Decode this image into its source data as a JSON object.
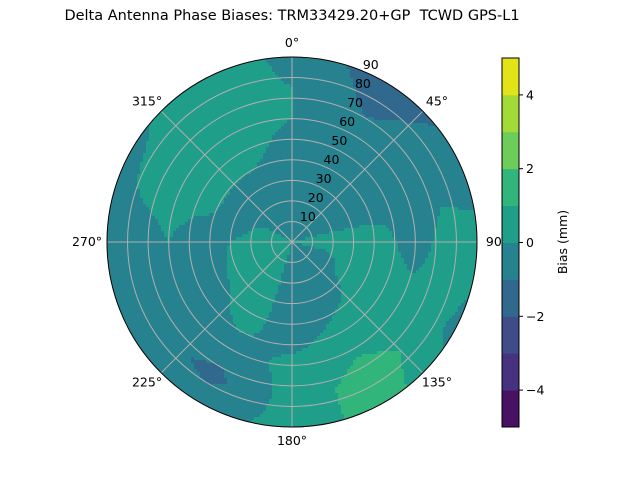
{
  "chart_data": {
    "type": "heatmap",
    "subtype": "polar-filled-contour",
    "title": "Delta Antenna Phase Biases: TRM33429.20+GP  TCWD GPS-L1",
    "angular_direction": "clockwise",
    "zero_location": "top",
    "angular_ticks": [
      "0°",
      "45°",
      "90°",
      "135°",
      "180°",
      "225°",
      "270°",
      "315°"
    ],
    "angular_tick_values": [
      0,
      45,
      90,
      135,
      180,
      225,
      270,
      315
    ],
    "radial_ticks": [
      "10",
      "20",
      "30",
      "40",
      "50",
      "60",
      "70",
      "80",
      "90"
    ],
    "radial_tick_values": [
      10,
      20,
      30,
      40,
      50,
      60,
      70,
      80,
      90
    ],
    "rlim": [
      0,
      90
    ],
    "grid": true,
    "colorbar": {
      "label": "Bias (mm)",
      "colormap": "viridis",
      "levels": [
        -5,
        -4,
        -3,
        -2,
        -1,
        0,
        1,
        2,
        3,
        4,
        5
      ],
      "ticks": [
        -4,
        -2,
        0,
        2,
        4
      ],
      "tick_labels": [
        "−4",
        "−2",
        "0",
        "2",
        "4"
      ],
      "band_colors": [
        "#471164",
        "#46327e",
        "#3e4c8a",
        "#31688e",
        "#26828e",
        "#1f9e89",
        "#31b57b",
        "#6ccd5a",
        "#a2da37",
        "#e2e418"
      ]
    },
    "azimuth_deg": [
      0,
      30,
      60,
      90,
      120,
      150,
      180,
      210,
      240,
      270,
      300,
      330
    ],
    "zenith_deg": [
      0,
      15,
      30,
      45,
      60,
      75,
      90
    ],
    "bias_mm": [
      [
        0,
        -0.5,
        -0.5,
        -0.4,
        0.0,
        0.0,
        -0.3
      ],
      [
        0,
        -0.5,
        -0.5,
        -0.5,
        -0.5,
        -1.2,
        -1.5
      ],
      [
        0,
        -0.4,
        -0.5,
        -0.5,
        -0.5,
        -0.5,
        -0.8
      ],
      [
        0,
        0.4,
        0.4,
        0.3,
        -0.5,
        0.4,
        0.4
      ],
      [
        0,
        -0.5,
        0.3,
        0.5,
        0.5,
        0.5,
        -0.3
      ],
      [
        0,
        -0.5,
        -0.5,
        0.2,
        0.8,
        1.5,
        1.5
      ],
      [
        0,
        -0.5,
        -0.5,
        -0.5,
        0.3,
        0.4,
        0.4
      ],
      [
        0,
        0.4,
        0.4,
        0.3,
        -0.5,
        -1.3,
        -0.5
      ],
      [
        0,
        0.4,
        0.3,
        -0.5,
        -0.5,
        -0.5,
        -0.3
      ],
      [
        0,
        0.3,
        0.0,
        -0.5,
        0.0,
        -0.5,
        -0.3
      ],
      [
        0,
        0.0,
        -0.5,
        0.4,
        0.5,
        0.5,
        -0.4
      ],
      [
        0,
        -0.5,
        -0.5,
        0.3,
        0.5,
        0.5,
        0.8
      ]
    ]
  }
}
